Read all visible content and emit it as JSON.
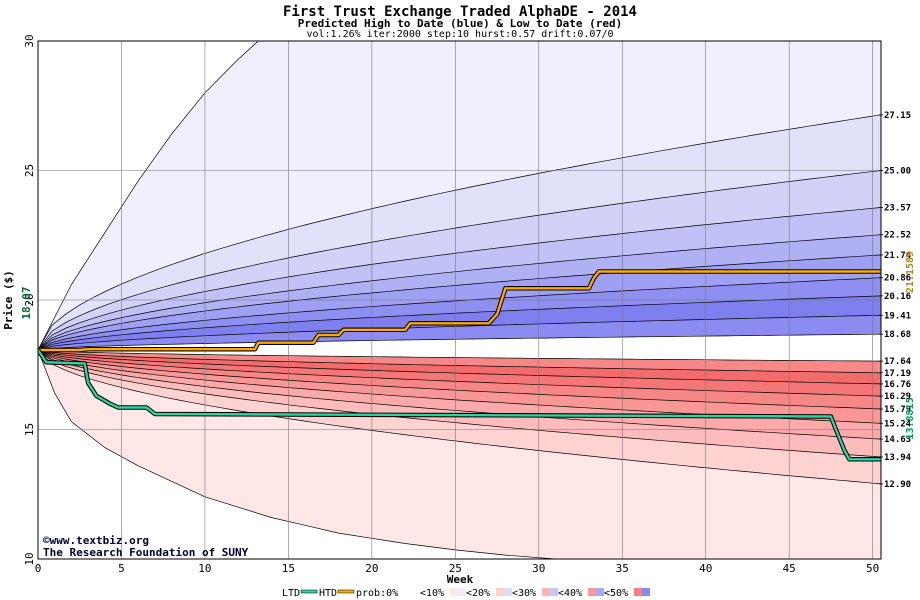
{
  "chart_data": {
    "type": "area",
    "title": "First Trust Exchange Traded AlphaDE - 2014",
    "subtitle": "Predicted High to Date (blue) &  Low to Date (red)",
    "params": "vol:1.26% iter:2000 step:10 hurst:0.57 drift:0.07/0",
    "xlabel": "Week",
    "ylabel": "Price ($)",
    "xlim": [
      0,
      50.5
    ],
    "ylim": [
      10,
      30
    ],
    "x_ticks": [
      0,
      5,
      10,
      15,
      20,
      25,
      30,
      35,
      40,
      45,
      50
    ],
    "y_ticks": [
      10,
      15,
      20,
      25,
      30
    ],
    "grid": true,
    "start_price": "18.07",
    "start_value": 18.07,
    "final_htd_label": "21.1589",
    "final_htd": 21.1589,
    "final_ltd_label": "13.8815",
    "final_ltd": 13.8815,
    "upper_bands": [
      {
        "label": "18.68",
        "end": 18.68
      },
      {
        "label": "19.41",
        "end": 19.41
      },
      {
        "label": "20.16",
        "end": 20.16
      },
      {
        "label": "20.86",
        "end": 20.86
      },
      {
        "label": "21.74",
        "end": 21.74
      },
      {
        "label": "22.52",
        "end": 22.52
      },
      {
        "label": "23.57",
        "end": 23.57
      },
      {
        "label": "25.00",
        "end": 25.0
      },
      {
        "label": "27.15",
        "end": 27.15
      }
    ],
    "lower_bands": [
      {
        "label": "17.64",
        "end": 17.64
      },
      {
        "label": "17.19",
        "end": 17.19
      },
      {
        "label": "16.76",
        "end": 16.76
      },
      {
        "label": "16.29",
        "end": 16.29
      },
      {
        "label": "15.79",
        "end": 15.79
      },
      {
        "label": "15.24",
        "end": 15.24
      },
      {
        "label": "14.63",
        "end": 14.63
      },
      {
        "label": "13.94",
        "end": 13.94
      },
      {
        "label": "12.90",
        "end": 12.9
      }
    ],
    "outer_upper_curve": [
      [
        0,
        18.07
      ],
      [
        2,
        20.6
      ],
      [
        4,
        22.6
      ],
      [
        6,
        24.6
      ],
      [
        8,
        26.4
      ],
      [
        10,
        28.0
      ],
      [
        12,
        29.3
      ],
      [
        13.2,
        30.0
      ]
    ],
    "outer_lower_curve": [
      [
        0,
        18.07
      ],
      [
        1,
        16.4
      ],
      [
        2,
        15.3
      ],
      [
        4,
        14.3
      ],
      [
        6,
        13.6
      ],
      [
        8,
        13.0
      ],
      [
        10,
        12.4
      ],
      [
        12,
        12.0
      ],
      [
        14,
        11.6
      ],
      [
        16,
        11.3
      ],
      [
        18,
        11.0
      ],
      [
        20,
        10.8
      ],
      [
        22,
        10.6
      ],
      [
        25,
        10.35
      ],
      [
        28,
        10.15
      ],
      [
        31,
        10.0
      ]
    ],
    "htd_series": [
      [
        0,
        18.07
      ],
      [
        2.5,
        18.07
      ],
      [
        3,
        18.1
      ],
      [
        13,
        18.1
      ],
      [
        13.2,
        18.35
      ],
      [
        16.5,
        18.35
      ],
      [
        16.8,
        18.65
      ],
      [
        18,
        18.65
      ],
      [
        18.3,
        18.85
      ],
      [
        22,
        18.85
      ],
      [
        22.3,
        19.1
      ],
      [
        27,
        19.1
      ],
      [
        27.5,
        19.45
      ],
      [
        28,
        20.45
      ],
      [
        33,
        20.45
      ],
      [
        33.3,
        20.85
      ],
      [
        33.6,
        21.1
      ],
      [
        50.5,
        21.1
      ]
    ],
    "ltd_series": [
      [
        0,
        18.07
      ],
      [
        0.5,
        17.6
      ],
      [
        2.8,
        17.55
      ],
      [
        3.0,
        16.8
      ],
      [
        3.5,
        16.3
      ],
      [
        4.3,
        16.0
      ],
      [
        4.8,
        15.85
      ],
      [
        6.5,
        15.85
      ],
      [
        7.0,
        15.6
      ],
      [
        47.5,
        15.5
      ],
      [
        47.8,
        15.0
      ],
      [
        48.3,
        14.2
      ],
      [
        48.6,
        13.85
      ],
      [
        50.5,
        13.85
      ]
    ],
    "credits": {
      "line1": "©www.textbiz.org",
      "line2": "The Research Foundation of SUNY"
    },
    "legend": {
      "ltd": "LTD",
      "htd": "HTD",
      "prob_label": "prob:0%",
      "bins": [
        "<10%",
        "<20%",
        "<30%",
        "<40%",
        "<50%"
      ]
    },
    "colors": {
      "htd_line": "#ffaa00",
      "ltd_line": "#2fd3a0",
      "upper_fills": [
        "#efeffd",
        "#e1e1fa",
        "#d2d2f9",
        "#c1c1f7",
        "#b0b0f5",
        "#9f9ff3",
        "#8f8ff1",
        "#7f7fef",
        "#8b8bf2"
      ],
      "lower_fills": [
        "#ffe7e7",
        "#ffd2d2",
        "#fdbcbc",
        "#fba9a9",
        "#f99797",
        "#f78686",
        "#f57676",
        "#f46b6b",
        "#f78888"
      ]
    }
  }
}
